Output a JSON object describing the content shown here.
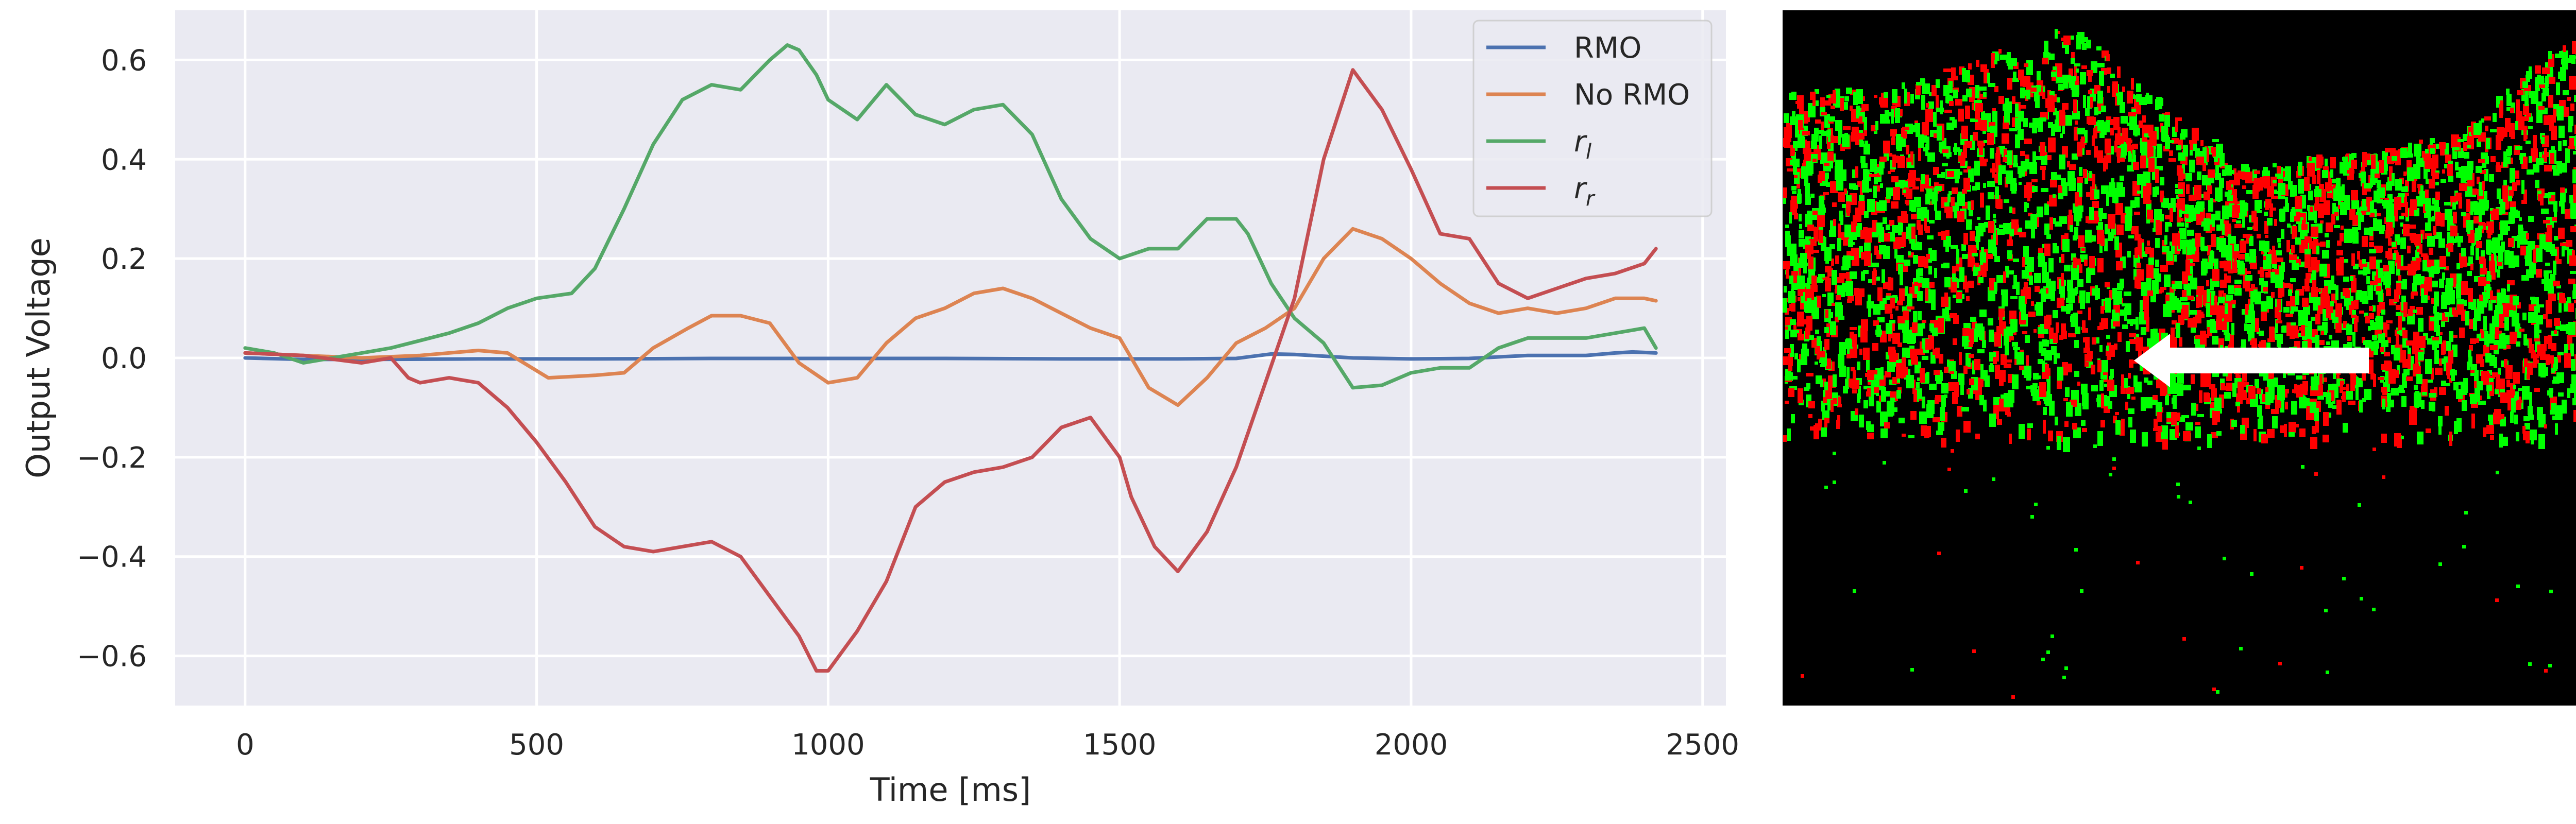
{
  "chart_data": {
    "type": "line",
    "title": "",
    "xlabel": "Time [ms]",
    "ylabel": "Output Voltage",
    "xlim": [
      -120,
      2540
    ],
    "ylim": [
      -0.7,
      0.7
    ],
    "xticks": [
      0,
      500,
      1000,
      1500,
      2000,
      2500
    ],
    "xtick_labels": [
      "0",
      "500",
      "1000",
      "1500",
      "2000",
      "2500"
    ],
    "yticks": [
      -0.6,
      -0.4,
      -0.2,
      0.0,
      0.2,
      0.4,
      0.6
    ],
    "ytick_labels": [
      "−0.6",
      "−0.4",
      "−0.2",
      "0.0",
      "0.2",
      "0.4",
      "0.6"
    ],
    "grid": true,
    "legend_position": "top-right",
    "series": [
      {
        "name": "RMO",
        "color": "#4c72b0",
        "x": [
          0,
          100,
          200,
          400,
          600,
          800,
          1000,
          1200,
          1400,
          1600,
          1700,
          1760,
          1800,
          1900,
          2000,
          2100,
          2200,
          2300,
          2350,
          2380,
          2420
        ],
        "y": [
          0.0,
          -0.003,
          -0.003,
          -0.002,
          -0.002,
          -0.001,
          -0.001,
          -0.001,
          -0.002,
          -0.002,
          -0.001,
          0.008,
          0.007,
          0.0,
          -0.002,
          -0.001,
          0.005,
          0.005,
          0.01,
          0.012,
          0.01
        ]
      },
      {
        "name": "No RMO",
        "color": "#dd8452",
        "x": [
          0,
          100,
          200,
          300,
          400,
          450,
          520,
          600,
          650,
          700,
          760,
          800,
          850,
          900,
          950,
          1000,
          1050,
          1100,
          1150,
          1200,
          1250,
          1300,
          1350,
          1400,
          1450,
          1500,
          1550,
          1600,
          1650,
          1700,
          1750,
          1800,
          1850,
          1900,
          1950,
          2000,
          2050,
          2100,
          2150,
          2200,
          2250,
          2300,
          2350,
          2400,
          2420
        ],
        "y": [
          0.01,
          0.005,
          0.0,
          0.005,
          0.015,
          0.01,
          -0.04,
          -0.035,
          -0.03,
          0.02,
          0.06,
          0.085,
          0.085,
          0.07,
          -0.01,
          -0.05,
          -0.04,
          0.03,
          0.08,
          0.1,
          0.13,
          0.14,
          0.12,
          0.09,
          0.06,
          0.04,
          -0.06,
          -0.095,
          -0.04,
          0.03,
          0.06,
          0.1,
          0.2,
          0.26,
          0.24,
          0.2,
          0.15,
          0.11,
          0.09,
          0.1,
          0.09,
          0.1,
          0.12,
          0.12,
          0.115
        ]
      },
      {
        "name": "r_l",
        "label_base": "r",
        "label_sub": "l",
        "color": "#55a868",
        "x": [
          0,
          50,
          100,
          150,
          200,
          250,
          300,
          350,
          400,
          450,
          500,
          560,
          600,
          650,
          700,
          750,
          800,
          850,
          900,
          930,
          950,
          980,
          1000,
          1050,
          1100,
          1150,
          1200,
          1250,
          1300,
          1350,
          1400,
          1450,
          1500,
          1550,
          1600,
          1650,
          1700,
          1720,
          1760,
          1800,
          1850,
          1900,
          1950,
          2000,
          2050,
          2100,
          2150,
          2200,
          2250,
          2300,
          2350,
          2400,
          2420
        ],
        "y": [
          0.02,
          0.01,
          -0.01,
          0.0,
          0.01,
          0.02,
          0.035,
          0.05,
          0.07,
          0.1,
          0.12,
          0.13,
          0.18,
          0.3,
          0.43,
          0.52,
          0.55,
          0.54,
          0.6,
          0.63,
          0.62,
          0.57,
          0.52,
          0.48,
          0.55,
          0.49,
          0.47,
          0.5,
          0.51,
          0.45,
          0.32,
          0.24,
          0.2,
          0.22,
          0.22,
          0.28,
          0.28,
          0.25,
          0.15,
          0.08,
          0.03,
          -0.06,
          -0.055,
          -0.03,
          -0.02,
          -0.02,
          0.02,
          0.04,
          0.04,
          0.04,
          0.05,
          0.06,
          0.02
        ]
      },
      {
        "name": "r_r",
        "label_base": "r",
        "label_sub": "r",
        "color": "#c44e52",
        "x": [
          0,
          100,
          200,
          250,
          280,
          300,
          350,
          400,
          450,
          500,
          550,
          600,
          650,
          700,
          750,
          800,
          850,
          900,
          950,
          980,
          1000,
          1050,
          1100,
          1150,
          1200,
          1250,
          1300,
          1350,
          1400,
          1450,
          1500,
          1520,
          1560,
          1600,
          1650,
          1700,
          1750,
          1800,
          1850,
          1900,
          1950,
          2000,
          2050,
          2100,
          2150,
          2200,
          2250,
          2300,
          2350,
          2400,
          2420
        ],
        "y": [
          0.01,
          0.005,
          -0.01,
          0.0,
          -0.04,
          -0.05,
          -0.04,
          -0.05,
          -0.1,
          -0.17,
          -0.25,
          -0.34,
          -0.38,
          -0.39,
          -0.38,
          -0.37,
          -0.4,
          -0.48,
          -0.56,
          -0.63,
          -0.63,
          -0.55,
          -0.45,
          -0.3,
          -0.25,
          -0.23,
          -0.22,
          -0.2,
          -0.14,
          -0.12,
          -0.2,
          -0.28,
          -0.38,
          -0.43,
          -0.35,
          -0.22,
          -0.05,
          0.12,
          0.4,
          0.58,
          0.5,
          0.38,
          0.25,
          0.24,
          0.15,
          0.12,
          0.14,
          0.16,
          0.17,
          0.19,
          0.22
        ]
      }
    ]
  },
  "event_frame": {
    "positive_color": "#00ff00",
    "negative_color": "#ff0000",
    "arrow_color": "#ffffff",
    "arrow_direction": "left"
  }
}
